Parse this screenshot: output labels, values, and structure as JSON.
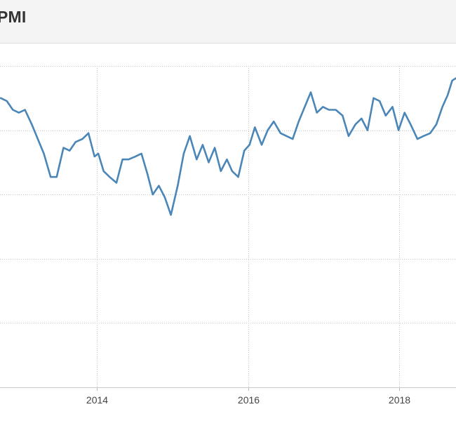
{
  "header": {
    "title": "PMI"
  },
  "chart_data": {
    "type": "line",
    "title": "PMI",
    "xlabel": "",
    "ylabel": "",
    "x_ticks": [
      "2014",
      "2016",
      "2018"
    ],
    "xlim": [
      2012.72,
      2018.75
    ],
    "ylim": [
      45,
      56
    ],
    "grid": true,
    "series": [
      {
        "color": "#4a86b8",
        "x": [
          2012.73,
          2012.81,
          2012.89,
          2012.97,
          2013.05,
          2013.14,
          2013.22,
          2013.3,
          2013.39,
          2013.47,
          2013.56,
          2013.64,
          2013.72,
          2013.81,
          2013.89,
          2013.97,
          2014.02,
          2014.09,
          2014.17,
          2014.26,
          2014.34,
          2014.42,
          2014.51,
          2014.59,
          2014.67,
          2014.74,
          2014.82,
          2014.9,
          2014.98,
          2015.07,
          2015.15,
          2015.23,
          2015.32,
          2015.4,
          2015.48,
          2015.56,
          2015.64,
          2015.72,
          2015.79,
          2015.87,
          2015.95,
          2016.02,
          2016.09,
          2016.18,
          2016.26,
          2016.34,
          2016.43,
          2016.51,
          2016.59,
          2016.67,
          2016.75,
          2016.83,
          2016.91,
          2016.99,
          2017.07,
          2017.16,
          2017.25,
          2017.33,
          2017.42,
          2017.5,
          2017.58,
          2017.66,
          2017.74,
          2017.82,
          2017.91,
          2017.99,
          2018.07,
          2018.15,
          2018.24,
          2018.32,
          2018.41,
          2018.49,
          2018.57,
          2018.64,
          2018.7,
          2018.76
        ],
        "values": [
          54.9,
          54.8,
          54.5,
          54.4,
          54.5,
          54.0,
          53.5,
          53.0,
          52.2,
          52.2,
          53.2,
          53.1,
          53.4,
          53.5,
          53.7,
          52.9,
          53.0,
          52.4,
          52.2,
          52.0,
          52.8,
          52.8,
          52.9,
          53.0,
          52.3,
          51.6,
          51.9,
          51.5,
          50.9,
          51.9,
          53.0,
          53.6,
          52.8,
          53.3,
          52.7,
          53.2,
          52.4,
          52.8,
          52.4,
          52.2,
          53.1,
          53.3,
          53.9,
          53.3,
          53.8,
          54.1,
          53.7,
          53.6,
          53.5,
          54.1,
          54.6,
          55.1,
          54.4,
          54.6,
          54.5,
          54.5,
          54.3,
          53.6,
          54.0,
          54.2,
          53.8,
          54.9,
          54.8,
          54.3,
          54.6,
          53.8,
          54.4,
          54.0,
          53.5,
          53.6,
          53.7,
          54.0,
          54.6,
          55.0,
          55.5,
          55.6
        ]
      }
    ]
  }
}
